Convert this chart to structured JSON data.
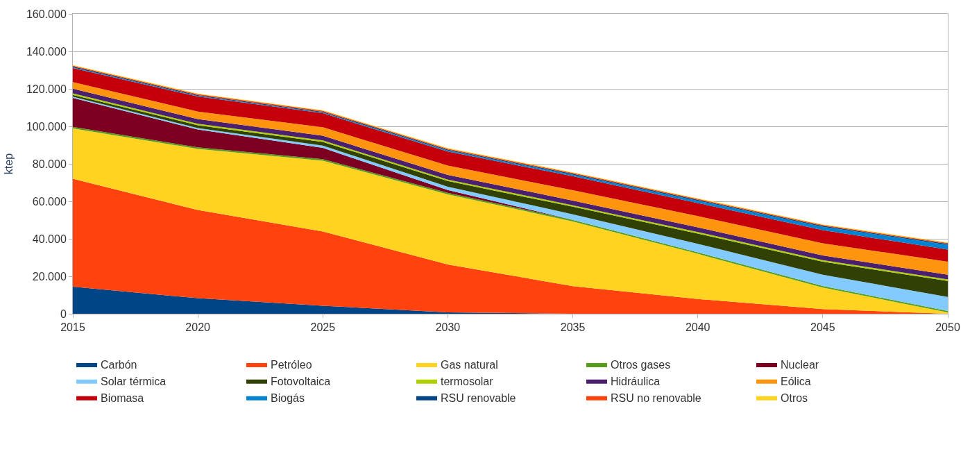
{
  "chart_data": {
    "type": "area",
    "stacked": true,
    "ylabel": "ktep",
    "x": [
      2015,
      2020,
      2025,
      2030,
      2035,
      2040,
      2045,
      2050
    ],
    "xlim": [
      2015,
      2050
    ],
    "xticks": [
      2015,
      2020,
      2025,
      2030,
      2035,
      2040,
      2045,
      2050
    ],
    "ylim": [
      0,
      160000
    ],
    "yticks": [
      {
        "value": 0,
        "label": "0"
      },
      {
        "value": 20000,
        "label": "20.000"
      },
      {
        "value": 40000,
        "label": "40.000"
      },
      {
        "value": 60000,
        "label": "60.000"
      },
      {
        "value": 80000,
        "label": "80.000"
      },
      {
        "value": 100000,
        "label": "100.000"
      },
      {
        "value": 120000,
        "label": "120.000"
      },
      {
        "value": 140000,
        "label": "140.000"
      },
      {
        "value": 160000,
        "label": "160.000"
      }
    ],
    "grid": "y",
    "legend": "bottom",
    "series": [
      {
        "name": "Carbón",
        "color": "#004586",
        "values": [
          14400,
          8300,
          4300,
          700,
          0,
          0,
          0,
          0
        ]
      },
      {
        "name": "Petróleo",
        "color": "#ff420e",
        "values": [
          57600,
          47100,
          39600,
          25600,
          14700,
          7900,
          2500,
          0
        ]
      },
      {
        "name": "Gas natural",
        "color": "#ffd320",
        "values": [
          26900,
          32600,
          37800,
          37400,
          34600,
          24100,
          11500,
          700
        ]
      },
      {
        "name": "Otros gases",
        "color": "#579d1c",
        "values": [
          800,
          800,
          800,
          800,
          800,
          800,
          800,
          800
        ]
      },
      {
        "name": "Nuclear",
        "color": "#7e0021",
        "values": [
          15500,
          9500,
          6000,
          1500,
          0,
          0,
          0,
          0
        ]
      },
      {
        "name": "Solar térmica",
        "color": "#83caff",
        "values": [
          600,
          800,
          1200,
          1800,
          3000,
          4500,
          6000,
          7500
        ]
      },
      {
        "name": "Fotovoltaica",
        "color": "#314004",
        "values": [
          1000,
          1500,
          2000,
          3000,
          4000,
          5500,
          7000,
          8500
        ]
      },
      {
        "name": "termosolar",
        "color": "#aecf00",
        "values": [
          800,
          800,
          800,
          800,
          800,
          800,
          800,
          800
        ]
      },
      {
        "name": "Hidráulica",
        "color": "#4b1f6f",
        "values": [
          2500,
          2500,
          2500,
          2500,
          2500,
          2500,
          2500,
          2500
        ]
      },
      {
        "name": "Eólica",
        "color": "#ff950e",
        "values": [
          3500,
          4000,
          4500,
          5000,
          5500,
          6000,
          6500,
          7000
        ]
      },
      {
        "name": "Biomasa",
        "color": "#c5000b",
        "values": [
          7500,
          8000,
          7500,
          7500,
          7500,
          7000,
          7000,
          6500
        ]
      },
      {
        "name": "Biogás",
        "color": "#0084d1",
        "values": [
          300,
          300,
          300,
          500,
          800,
          1200,
          1800,
          2500
        ]
      },
      {
        "name": "RSU renovable",
        "color": "#004586",
        "values": [
          500,
          500,
          500,
          500,
          500,
          500,
          500,
          500
        ]
      },
      {
        "name": "RSU no renovable",
        "color": "#ff420e",
        "values": [
          500,
          500,
          500,
          500,
          500,
          500,
          500,
          500
        ]
      },
      {
        "name": "Otros",
        "color": "#ffd320",
        "values": [
          300,
          300,
          300,
          300,
          300,
          300,
          300,
          300
        ]
      }
    ]
  }
}
